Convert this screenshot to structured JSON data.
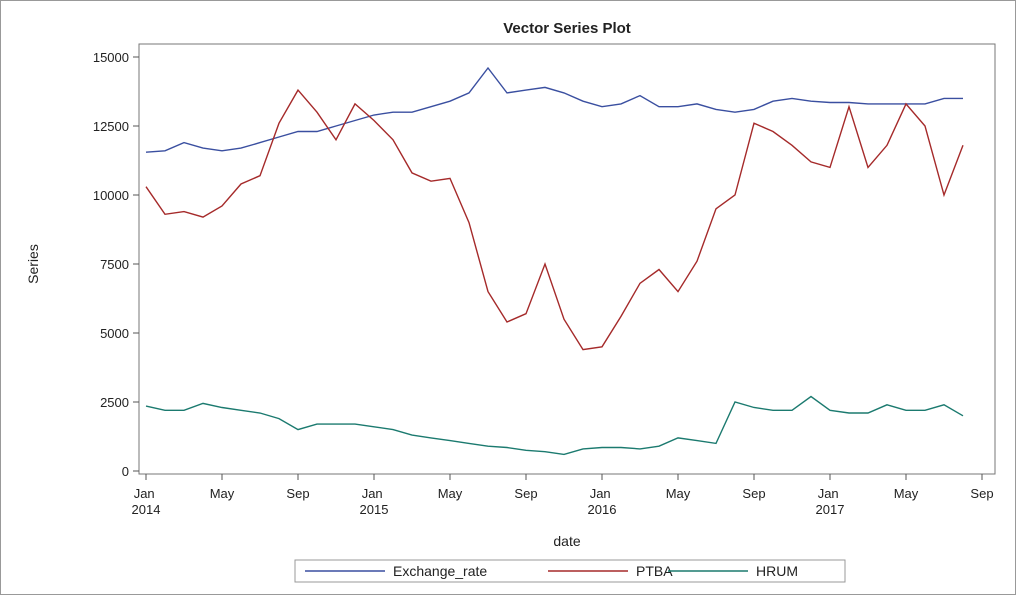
{
  "chart_data": {
    "type": "line",
    "title": "Vector Series Plot",
    "x_label": "date",
    "y_label": "Series",
    "x": [
      "2014-01",
      "2014-02",
      "2014-03",
      "2014-04",
      "2014-05",
      "2014-06",
      "2014-07",
      "2014-08",
      "2014-09",
      "2014-10",
      "2014-11",
      "2014-12",
      "2015-01",
      "2015-02",
      "2015-03",
      "2015-04",
      "2015-05",
      "2015-06",
      "2015-07",
      "2015-08",
      "2015-09",
      "2015-10",
      "2015-11",
      "2015-12",
      "2016-01",
      "2016-02",
      "2016-03",
      "2016-04",
      "2016-05",
      "2016-06",
      "2016-07",
      "2016-08",
      "2016-09",
      "2016-10",
      "2016-11",
      "2016-12",
      "2017-01",
      "2017-02",
      "2017-03",
      "2017-04",
      "2017-05",
      "2017-06",
      "2017-07",
      "2017-08"
    ],
    "series": [
      {
        "name": "Exchange_rate",
        "color": "#3a4fa0",
        "values": [
          11550,
          11600,
          11900,
          11700,
          11600,
          11700,
          11900,
          12100,
          12300,
          12300,
          12500,
          12700,
          12900,
          13000,
          13000,
          13200,
          13400,
          13700,
          14600,
          13700,
          13800,
          13900,
          13700,
          13400,
          13200,
          13300,
          13600,
          13200,
          13200,
          13300,
          13100,
          13000,
          13100,
          13400,
          13500,
          13400,
          13350,
          13350,
          13300,
          13300,
          13300,
          13300,
          13500,
          13500
        ]
      },
      {
        "name": "PTBA",
        "color": "#a52a2a",
        "values": [
          10300,
          9300,
          9400,
          9200,
          9600,
          10400,
          10700,
          12600,
          13800,
          13000,
          12000,
          13300,
          12700,
          12000,
          10800,
          10500,
          10600,
          9000,
          6500,
          5400,
          5700,
          7500,
          5500,
          4400,
          4500,
          5600,
          6800,
          7300,
          6500,
          7600,
          9500,
          10000,
          12600,
          12300,
          11800,
          11200,
          11000,
          13200,
          11000,
          11800,
          13300,
          12500,
          10000,
          11800
        ]
      },
      {
        "name": "HRUM",
        "color": "#1b7a6f",
        "values": [
          2350,
          2200,
          2200,
          2450,
          2300,
          2200,
          2100,
          1900,
          1500,
          1700,
          1700,
          1700,
          1600,
          1500,
          1300,
          1200,
          1100,
          1000,
          900,
          850,
          750,
          700,
          600,
          800,
          850,
          850,
          800,
          900,
          1200,
          1100,
          1000,
          2500,
          2300,
          2200,
          2200,
          2700,
          2200,
          2100,
          2100,
          2400,
          2200,
          2200,
          2400,
          2000
        ]
      }
    ],
    "xlim": [
      "2014-01",
      "2017-09"
    ],
    "xticks": [
      {
        "value": "2014-01",
        "label": "Jan 2014"
      },
      {
        "value": "2014-05",
        "label": "May"
      },
      {
        "value": "2014-09",
        "label": "Sep"
      },
      {
        "value": "2015-01",
        "label": "Jan 2015"
      },
      {
        "value": "2015-05",
        "label": "May"
      },
      {
        "value": "2015-09",
        "label": "Sep"
      },
      {
        "value": "2016-01",
        "label": "Jan 2016"
      },
      {
        "value": "2016-05",
        "label": "May"
      },
      {
        "value": "2016-09",
        "label": "Sep"
      },
      {
        "value": "2017-01",
        "label": "Jan 2017"
      },
      {
        "value": "2017-05",
        "label": "May"
      },
      {
        "value": "2017-09",
        "label": "Sep"
      }
    ],
    "ylim": [
      0,
      15000
    ],
    "yticks": [
      0,
      2500,
      5000,
      7500,
      10000,
      12500,
      15000
    ],
    "grid": false,
    "legend": "bottom"
  }
}
